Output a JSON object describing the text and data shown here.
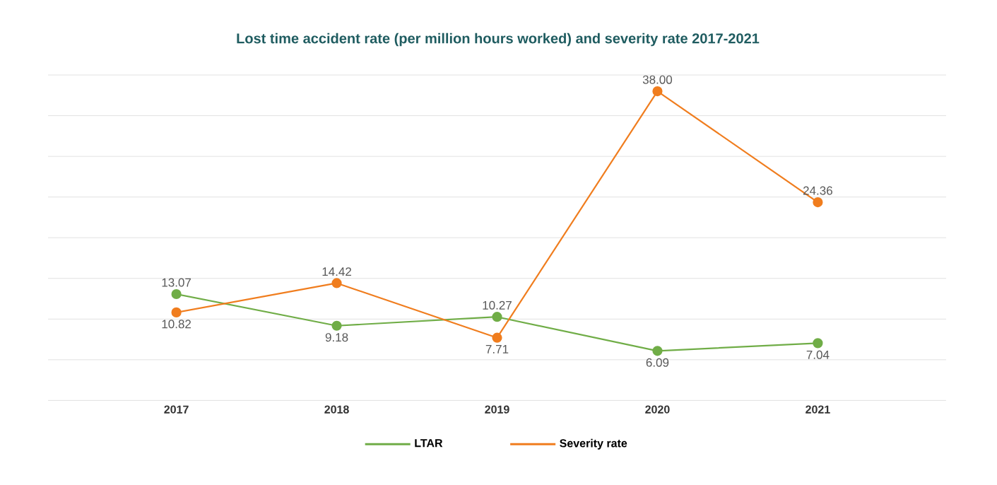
{
  "chart_data": {
    "type": "line",
    "title": "Lost time accident rate (per million hours worked) and severity rate 2017-2021",
    "categories": [
      "2017",
      "2018",
      "2019",
      "2020",
      "2021"
    ],
    "series": [
      {
        "name": "LTAR",
        "color": "#70ad47",
        "values": [
          13.07,
          9.18,
          10.27,
          6.09,
          7.04
        ],
        "value_labels": [
          "13.07",
          "9.18",
          "10.27",
          "6.09",
          "7.04"
        ]
      },
      {
        "name": "Severity rate",
        "color": "#f07d1e",
        "values": [
          10.82,
          14.42,
          7.71,
          38.0,
          24.36
        ],
        "value_labels": [
          "10.82",
          "14.42",
          "7.71",
          "38.00",
          "24.36"
        ]
      }
    ],
    "ylim": [
      0,
      40
    ],
    "yticks": [
      {
        "value": 0,
        "label": null
      },
      {
        "value": 5,
        "label": null
      },
      {
        "value": 10,
        "label": null
      },
      {
        "value": 15,
        "label": null
      },
      {
        "value": 20,
        "label": null
      },
      {
        "value": 25,
        "label": null
      },
      {
        "value": 30,
        "label": null
      },
      {
        "value": 35,
        "label": null
      },
      {
        "value": 40,
        "label": null
      }
    ],
    "grid": "y",
    "legend": "bottom",
    "marker": "circle",
    "line_style": "solid"
  }
}
